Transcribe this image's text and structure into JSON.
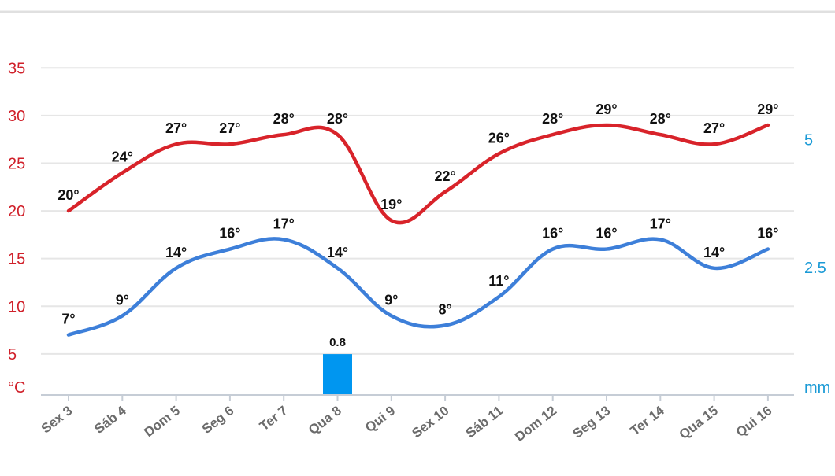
{
  "chart_data": {
    "type": "line",
    "categories": [
      "Sex 3",
      "Sáb 4",
      "Dom 5",
      "Seg 6",
      "Ter 7",
      "Qua 8",
      "Qui 9",
      "Sex 10",
      "Sáb 11",
      "Dom 12",
      "Seg 13",
      "Ter 14",
      "Qua 15",
      "Qui 16"
    ],
    "series": [
      {
        "name": "",
        "color": "#d8232a",
        "values": [
          20,
          24,
          27,
          27,
          28,
          28,
          19,
          22,
          26,
          28,
          29,
          28,
          27,
          29
        ],
        "labels": [
          "20°",
          "24°",
          "27°",
          "27°",
          "28°",
          "28°",
          "19°",
          "22°",
          "26°",
          "28°",
          "29°",
          "28°",
          "27°",
          "29°"
        ]
      },
      {
        "name": "",
        "color": "#3d7fd9",
        "values": [
          7,
          9,
          14,
          16,
          17,
          14,
          9,
          8,
          11,
          16,
          16,
          17,
          14,
          16
        ],
        "labels": [
          "7°",
          "9°",
          "14°",
          "16°",
          "17°",
          "14°",
          "9°",
          "8°",
          "11°",
          "16°",
          "16°",
          "17°",
          "14°",
          "16°"
        ]
      }
    ],
    "bars": {
      "color": "#0096f0",
      "values": [
        0,
        0,
        0,
        0,
        0,
        0.8,
        0,
        0,
        0,
        0,
        0,
        0,
        0,
        0
      ],
      "labels": [
        "",
        "",
        "",
        "",
        "",
        "0.8",
        "",
        "",
        "",
        "",
        "",
        "",
        "",
        ""
      ]
    },
    "left_axis": {
      "unit": "°C",
      "ticks": [
        "35",
        "30",
        "25",
        "20",
        "15",
        "10",
        "5"
      ],
      "tick_values": [
        35,
        30,
        25,
        20,
        15,
        10,
        5
      ],
      "ylim": [
        0.7,
        37.3
      ],
      "color": "#d0202a"
    },
    "right_axis": {
      "unit": "mm",
      "ticks": [
        "5",
        "2.5"
      ],
      "tick_values": [
        5,
        2.5
      ],
      "ylim": [
        0,
        7.0
      ],
      "color": "#1a9ad6"
    },
    "grid": true
  }
}
